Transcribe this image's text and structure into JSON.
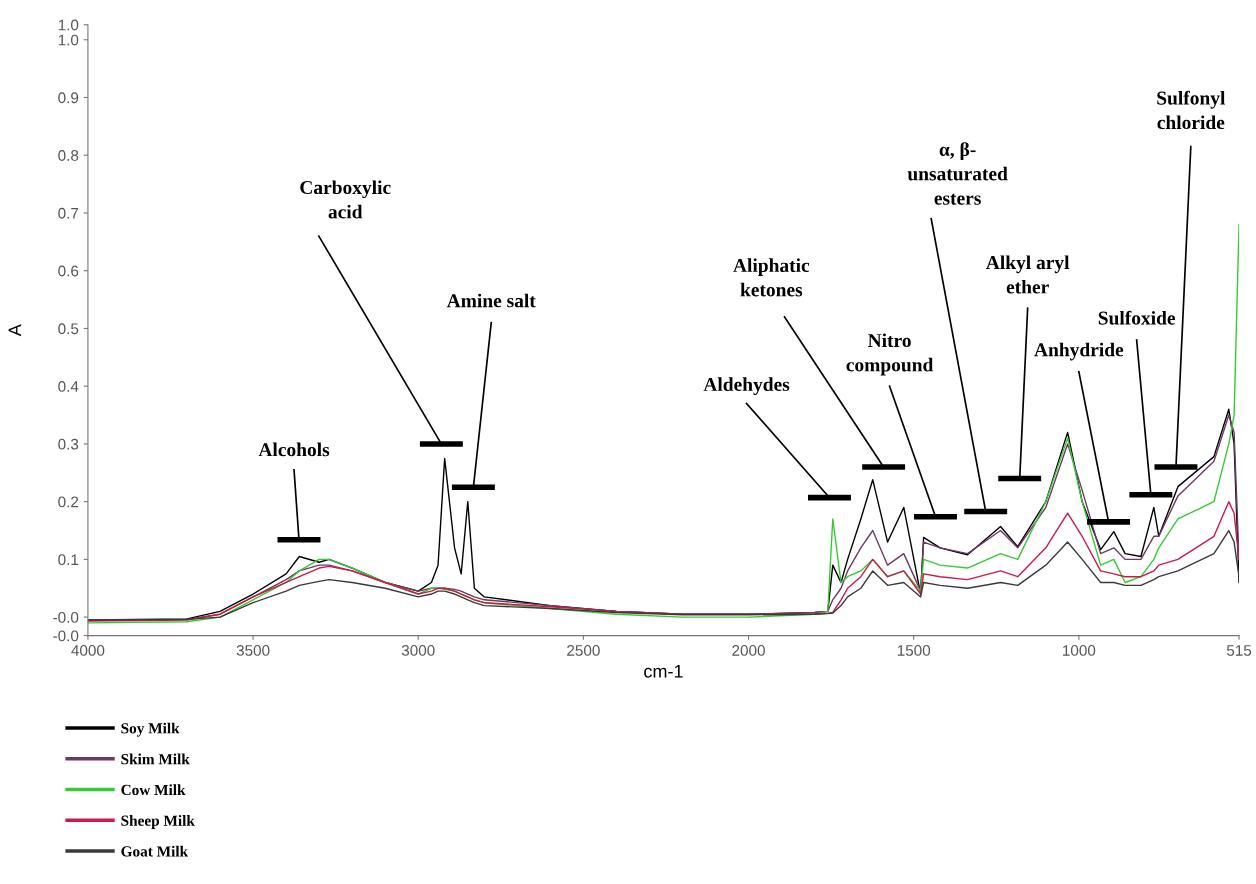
{
  "chart_data": {
    "type": "line",
    "xlabel": "cm-1",
    "ylabel": "A",
    "x": [
      4000,
      3700,
      3600,
      3500,
      3400,
      3360,
      3300,
      3270,
      3200,
      3100,
      3000,
      2960,
      2940,
      2920,
      2890,
      2870,
      2850,
      2830,
      2800,
      2600,
      2400,
      2200,
      2000,
      1800,
      1760,
      1745,
      1720,
      1700,
      1660,
      1624,
      1579,
      1530,
      1479,
      1470,
      1420,
      1337,
      1237,
      1185,
      1100,
      1034,
      990,
      934,
      894,
      860,
      812,
      773,
      758,
      700,
      591,
      546,
      530,
      515
    ],
    "series": [
      {
        "name": "Soy Milk",
        "color": "#000000",
        "values": [
          -0.005,
          -0.003,
          0.01,
          0.04,
          0.075,
          0.105,
          0.095,
          0.1,
          0.085,
          0.06,
          0.045,
          0.06,
          0.09,
          0.275,
          0.12,
          0.075,
          0.2,
          0.05,
          0.035,
          0.02,
          0.01,
          0.005,
          0.005,
          0.008,
          0.01,
          0.09,
          0.06,
          0.1,
          0.17,
          0.238,
          0.13,
          0.19,
          0.04,
          0.138,
          0.12,
          0.108,
          0.157,
          0.122,
          0.2,
          0.32,
          0.2,
          0.117,
          0.148,
          0.11,
          0.105,
          0.19,
          0.14,
          0.226,
          0.278,
          0.36,
          0.3,
          0.06
        ]
      },
      {
        "name": "Skim Milk",
        "color": "#6e3a63",
        "values": [
          -0.005,
          -0.004,
          0.005,
          0.035,
          0.065,
          0.08,
          0.09,
          0.09,
          0.08,
          0.06,
          0.045,
          0.05,
          0.05,
          0.05,
          0.048,
          0.045,
          0.04,
          0.035,
          0.03,
          0.02,
          0.01,
          0.005,
          0.005,
          0.008,
          0.01,
          0.03,
          0.05,
          0.08,
          0.12,
          0.15,
          0.09,
          0.11,
          0.045,
          0.13,
          0.12,
          0.11,
          0.15,
          0.12,
          0.19,
          0.3,
          0.22,
          0.11,
          0.12,
          0.1,
          0.1,
          0.14,
          0.14,
          0.21,
          0.27,
          0.35,
          0.32,
          0.1
        ]
      },
      {
        "name": "Cow Milk",
        "color": "#33cc33",
        "values": [
          -0.01,
          -0.008,
          0.0,
          0.03,
          0.06,
          0.08,
          0.1,
          0.1,
          0.085,
          0.06,
          0.04,
          0.05,
          0.05,
          0.048,
          0.045,
          0.04,
          0.035,
          0.03,
          0.025,
          0.015,
          0.005,
          0.0,
          0.0,
          0.005,
          0.01,
          0.17,
          0.06,
          0.07,
          0.08,
          0.1,
          0.07,
          0.08,
          0.045,
          0.1,
          0.09,
          0.085,
          0.11,
          0.1,
          0.2,
          0.31,
          0.2,
          0.09,
          0.1,
          0.06,
          0.07,
          0.1,
          0.12,
          0.17,
          0.2,
          0.3,
          0.35,
          0.68
        ]
      },
      {
        "name": "Sheep Milk",
        "color": "#cc1a4a",
        "values": [
          -0.007,
          -0.005,
          0.005,
          0.035,
          0.06,
          0.07,
          0.085,
          0.088,
          0.08,
          0.06,
          0.04,
          0.045,
          0.05,
          0.05,
          0.045,
          0.04,
          0.035,
          0.03,
          0.025,
          0.018,
          0.01,
          0.005,
          0.005,
          0.005,
          0.007,
          0.008,
          0.03,
          0.05,
          0.07,
          0.1,
          0.07,
          0.08,
          0.04,
          0.075,
          0.07,
          0.065,
          0.08,
          0.07,
          0.12,
          0.18,
          0.14,
          0.08,
          0.075,
          0.07,
          0.07,
          0.08,
          0.09,
          0.1,
          0.14,
          0.2,
          0.18,
          0.1
        ]
      },
      {
        "name": "Goat Milk",
        "color": "#3a3a3a",
        "values": [
          -0.005,
          -0.004,
          0.0,
          0.025,
          0.045,
          0.055,
          0.062,
          0.065,
          0.06,
          0.05,
          0.035,
          0.04,
          0.045,
          0.045,
          0.04,
          0.035,
          0.03,
          0.025,
          0.02,
          0.015,
          0.008,
          0.004,
          0.004,
          0.005,
          0.006,
          0.007,
          0.02,
          0.035,
          0.05,
          0.08,
          0.055,
          0.06,
          0.035,
          0.06,
          0.055,
          0.05,
          0.06,
          0.055,
          0.09,
          0.13,
          0.1,
          0.06,
          0.06,
          0.055,
          0.055,
          0.065,
          0.07,
          0.08,
          0.11,
          0.15,
          0.13,
          0.07
        ]
      }
    ],
    "xlim": [
      4000,
      515
    ],
    "xticks": [
      4000,
      3500,
      3000,
      2500,
      2000,
      1500,
      1000,
      515
    ],
    "ylim": [
      -0.032,
      1.026
    ],
    "yticks": [
      {
        "value": -0.032,
        "label": "-0.0"
      },
      {
        "value": 0,
        "label": "-0.0"
      },
      0.1,
      0.2,
      0.3,
      0.4,
      0.5,
      0.6,
      0.7,
      0.8,
      0.9,
      {
        "value": 1.0,
        "label": "1.0"
      },
      {
        "value": 1.026,
        "label": "1.0"
      }
    ],
    "grid": false,
    "legend": "bottom left",
    "marker": "none",
    "line_style": "solid",
    "annotations": [
      "Alcohols",
      "Carboxylic\nacid",
      "Amine salt",
      "Aldehydes",
      "Aliphatic\nketones",
      "Nitro\ncompound",
      "α, β-\nunsaturated\nesters",
      "Alkyl aryl\nether",
      "Anhydride",
      "Sulfoxide",
      "Sulfonyl\nchloride"
    ]
  }
}
